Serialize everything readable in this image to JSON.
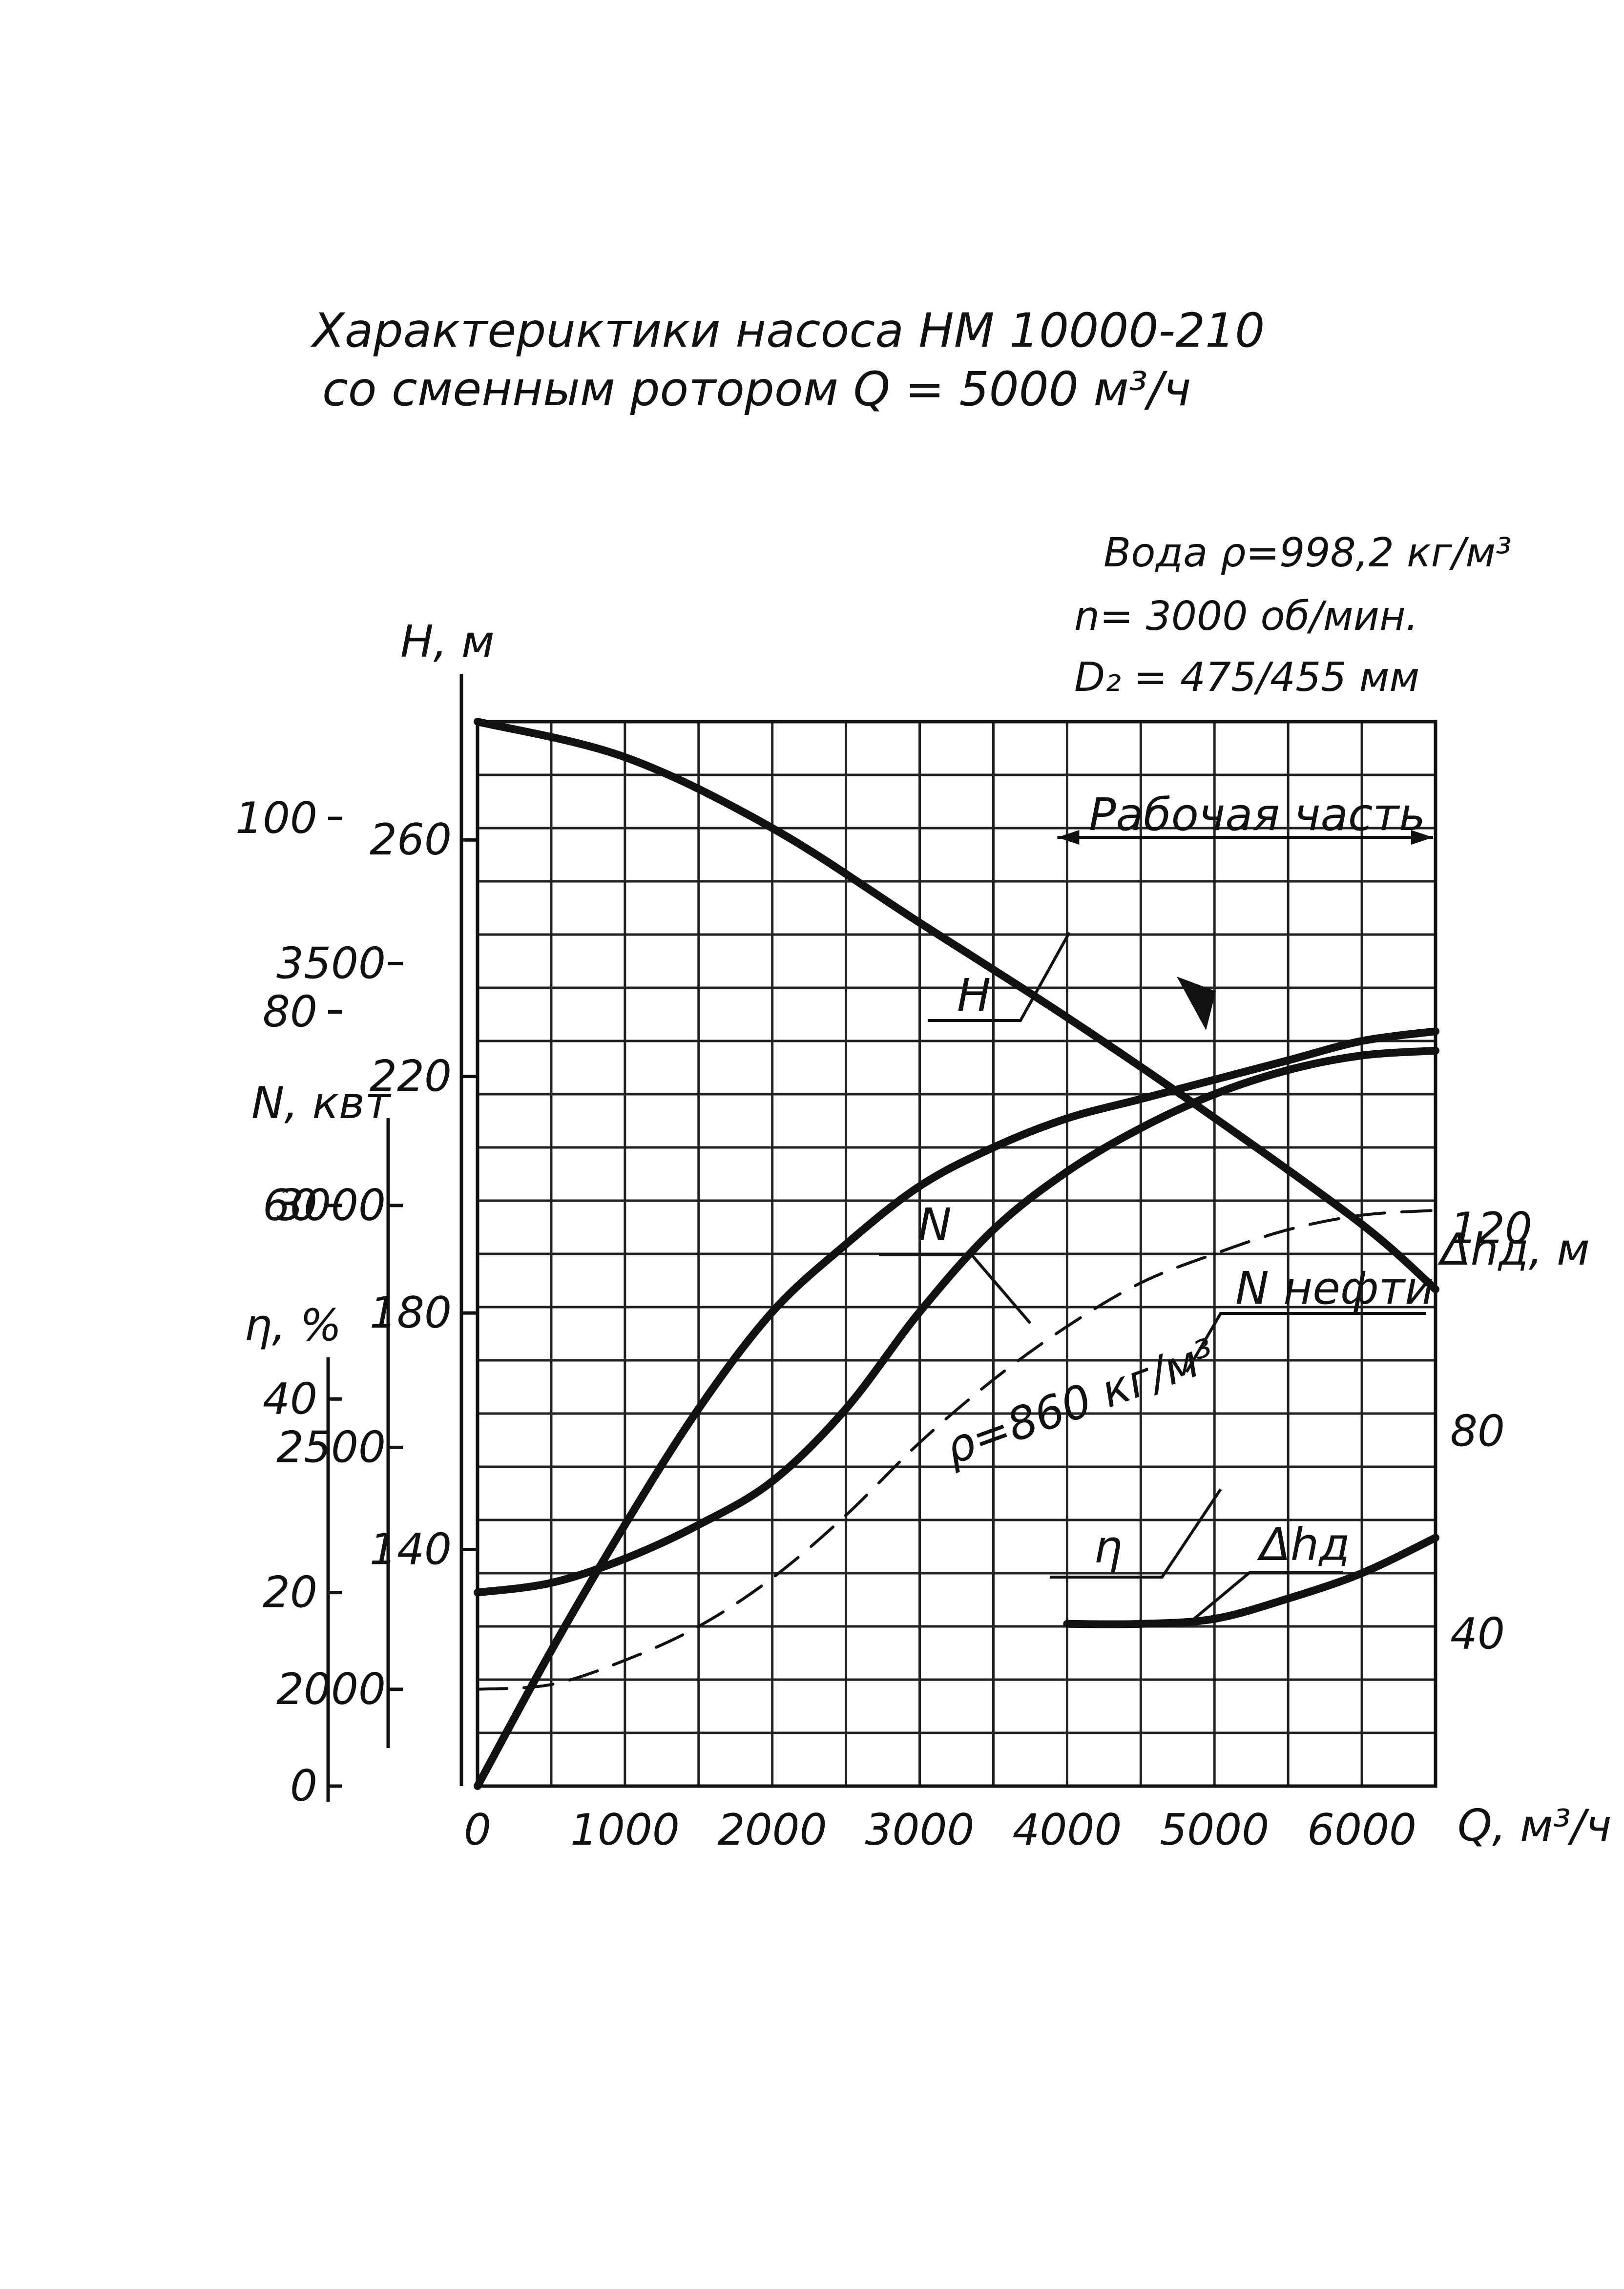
{
  "title": {
    "line1": "Характерuктики насоса НМ 10000-210",
    "line2": "со сменным ротором Q = 5000 м³/ч"
  },
  "params": {
    "fluid": "Вода ρ=998,2 кг/м³",
    "speed": "n= 3000 об/мин.",
    "diameter": "D₂ = 475/455 мм"
  },
  "labels": {
    "h_axis": "H, м",
    "n_axis": "N, квт",
    "eta_axis": "η, %",
    "dh_axis": "Δhд, м",
    "q_axis": "Q, м³/ч",
    "working_zone": "Рабочая часть",
    "curve_h": "H",
    "curve_n": "N",
    "curve_n_oil": "N нефти",
    "oil_density": "ρ=860 кг/м³",
    "curve_eta": "η",
    "curve_dh": "Δhд"
  },
  "chart_data": {
    "type": "line",
    "x_label": "Q, м³/ч",
    "x_ticks": [
      0,
      1000,
      2000,
      3000,
      4000,
      5000,
      6000
    ],
    "xlim": [
      0,
      6500
    ],
    "axes": {
      "H": {
        "label": "H, м",
        "ticks": [
          140,
          180,
          220,
          260
        ],
        "range": [
          100,
          280
        ]
      },
      "N": {
        "label": "N, квт",
        "ticks": [
          2000,
          2500,
          3000,
          3500
        ],
        "range": [
          1800,
          4000
        ]
      },
      "eta": {
        "label": "η, %",
        "ticks": [
          0,
          20,
          40,
          60,
          80,
          100
        ],
        "range": [
          0,
          110
        ]
      },
      "dh": {
        "label": "Δhд, м",
        "ticks": [
          40,
          80,
          120
        ],
        "range": [
          10,
          220
        ]
      }
    },
    "working_zone": {
      "label": "Рабочая часть",
      "range": [
        4000,
        6500
      ]
    },
    "series": [
      {
        "name": "H",
        "axis": "H",
        "x": [
          0,
          1000,
          2000,
          3000,
          4000,
          5000,
          6000,
          6500
        ],
        "y": [
          280,
          274,
          262,
          246,
          230,
          213,
          195,
          184
        ]
      },
      {
        "name": "N",
        "axis": "N",
        "x": [
          0,
          500,
          1000,
          1500,
          2000,
          2500,
          3000,
          3500,
          4000,
          4500,
          5000,
          5500,
          6000,
          6500
        ],
        "y": [
          2200,
          2220,
          2270,
          2340,
          2430,
          2580,
          2780,
          2950,
          3070,
          3160,
          3230,
          3280,
          3310,
          3320
        ]
      },
      {
        "name": "N нефти",
        "axis": "N",
        "style": "dashed",
        "x": [
          0,
          500,
          1000,
          1500,
          2000,
          2500,
          3000,
          3500,
          4000,
          4500,
          5000,
          5500,
          6000,
          6500
        ],
        "y": [
          2000,
          2010,
          2060,
          2130,
          2230,
          2360,
          2510,
          2640,
          2750,
          2840,
          2900,
          2950,
          2980,
          2990
        ]
      },
      {
        "name": "η",
        "axis": "eta",
        "x": [
          0,
          500,
          1000,
          1500,
          2000,
          2500,
          3000,
          3500,
          4000,
          4500,
          5000,
          5500,
          6000,
          6500
        ],
        "y": [
          0,
          14,
          27,
          39,
          49,
          56,
          62,
          66,
          69,
          71,
          73,
          75,
          77,
          78
        ]
      },
      {
        "name": "Δhд",
        "axis": "dh",
        "x": [
          4000,
          4500,
          5000,
          5500,
          6000,
          6500
        ],
        "y": [
          42,
          42,
          43,
          47,
          52,
          59
        ]
      }
    ]
  }
}
